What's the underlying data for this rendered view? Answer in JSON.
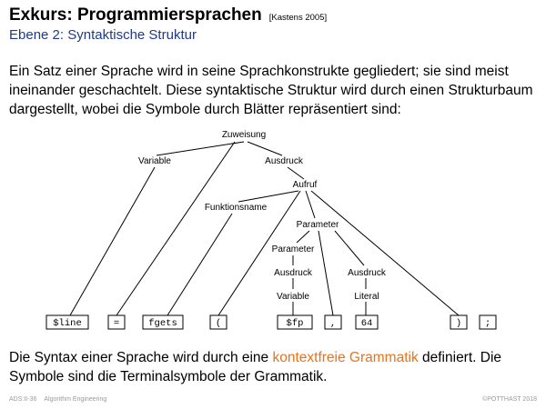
{
  "header": {
    "title": "Exkurs: Programmiersprachen",
    "citation": "[Kastens 2005]",
    "subtitle": "Ebene 2: Syntaktische Struktur"
  },
  "intro_text": "Ein Satz einer Sprache wird in seine Sprachkonstrukte gegliedert; sie sind meist ineinander geschachtelt. Diese syntaktische Struktur wird durch einen Strukturbaum dargestellt, wobei die Symbole durch Blätter repräsentiert sind:",
  "tree": {
    "nodes": {
      "zuweisung": "Zuweisung",
      "variable": "Variable",
      "ausdruck": "Ausdruck",
      "aufruf": "Aufruf",
      "funktionsname": "Funktionsname",
      "parameter": "Parameter",
      "parameter_inner": "Parameter",
      "ausdruck_left": "Ausdruck",
      "ausdruck_right": "Ausdruck",
      "variable_inner": "Variable",
      "literal": "Literal"
    },
    "leaves": [
      "$line",
      "=",
      "fgets",
      "(",
      "$fp",
      ",",
      "64",
      ")",
      ";"
    ]
  },
  "outro": {
    "before": "Die Syntax einer Sprache wird durch eine ",
    "link": "kontextfreie Grammatik",
    "after": " definiert. Die Symbole sind die Terminalsymbole der Grammatik."
  },
  "colors": {
    "subtitle": "#1f3a8a",
    "link": "#e8731c",
    "footer": "#999999"
  },
  "footer": {
    "slide_ref": "ADS:II-36",
    "course": "Algorithm Engineering",
    "copyright": "©POTTHAST 2018"
  }
}
